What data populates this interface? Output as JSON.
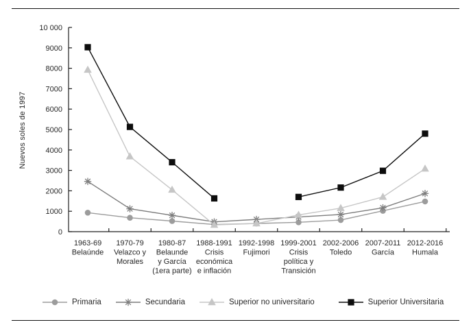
{
  "chart_data": {
    "type": "line",
    "title": "",
    "xlabel": "",
    "ylabel": "Nuevos soles de 1997",
    "ylim": [
      0,
      10000
    ],
    "ytick_interval": 1000,
    "ytick_labels": [
      "0",
      "1000",
      "2000",
      "3000",
      "4000",
      "5000",
      "6000",
      "7000",
      "8000",
      "9000",
      "10 000"
    ],
    "grid": false,
    "legend_position": "bottom",
    "categories": [
      {
        "lines": [
          "1963-69",
          "Belaúnde"
        ]
      },
      {
        "lines": [
          "1970-79",
          "Velazco y",
          "Morales"
        ]
      },
      {
        "lines": [
          "1980-87",
          "Belaunde",
          "y García",
          "(1era parte)"
        ]
      },
      {
        "lines": [
          "1988-1991",
          "Crisis",
          "económica",
          "e inflación"
        ]
      },
      {
        "lines": [
          "1992-1998",
          "Fujimori"
        ]
      },
      {
        "lines": [
          "1999-2001",
          "Crisis",
          "política y",
          "Transición"
        ]
      },
      {
        "lines": [
          "2002-2006",
          "Toledo"
        ]
      },
      {
        "lines": [
          "2007-2011",
          "García"
        ]
      },
      {
        "lines": [
          "2012-2016",
          "Humala"
        ]
      }
    ],
    "series": [
      {
        "name": "Primaria",
        "marker": "circle",
        "color": "#9c9c9c",
        "values": [
          930,
          680,
          520,
          350,
          400,
          460,
          570,
          1020,
          1480
        ]
      },
      {
        "name": "Secundaria",
        "marker": "asterisk",
        "color": "#7c7c7c",
        "values": [
          2460,
          1120,
          800,
          480,
          600,
          720,
          840,
          1170,
          1870
        ]
      },
      {
        "name": "Superior no universitario",
        "marker": "triangle",
        "color": "#c6c6c6",
        "values": [
          7920,
          3680,
          2050,
          330,
          400,
          820,
          1150,
          1700,
          3080
        ]
      },
      {
        "name": "Superior Universitaria",
        "marker": "square",
        "color": "#0d0d0d",
        "values": [
          9030,
          5130,
          3400,
          1630,
          null,
          1700,
          2160,
          2980,
          4800
        ]
      }
    ]
  }
}
